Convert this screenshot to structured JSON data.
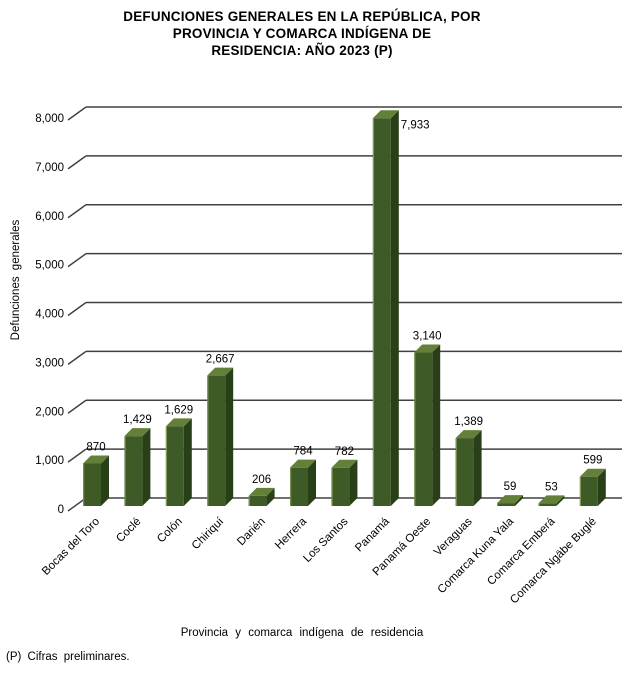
{
  "chart_data": {
    "type": "bar",
    "style": "3d-column",
    "title": "DEFUNCIONES GENERALES EN LA REPÚBLICA, POR PROVINCIA Y COMARCA INDÍGENA DE RESIDENCIA: AÑO 2023 (P)",
    "title_lines": [
      "DEFUNCIONES GENERALES EN LA REPÚBLICA, POR",
      "PROVINCIA Y COMARCA INDÍGENA DE",
      "RESIDENCIA: AÑO 2023 (P)"
    ],
    "categories": [
      "Bocas del Toro",
      "Coclé",
      "Colón",
      "Chiriquí",
      "Darién",
      "Herrera",
      "Los Santos",
      "Panamá",
      "Panamá Oeste",
      "Veraguas",
      "Comarca Kuna Yala",
      "Comarca Emberá",
      "Comarca Ngäbe Buglé"
    ],
    "values": [
      870,
      1429,
      1629,
      2667,
      206,
      784,
      782,
      7933,
      3140,
      1389,
      59,
      53,
      599
    ],
    "value_labels": [
      "870",
      "1,429",
      "1,629",
      "2,667",
      "206",
      "784",
      "782",
      "7,933",
      "3,140",
      "1,389",
      "59",
      "53",
      "599"
    ],
    "xlabel": "Provincia y comarca indígena de residencia",
    "ylabel": "Defunciones generales",
    "ylim": [
      0,
      8000
    ],
    "ytick_interval": 1000,
    "ytick_labels": [
      "0",
      "1,000",
      "2,000",
      "3,000",
      "4,000",
      "5,000",
      "6,000",
      "7,000",
      "8,000"
    ],
    "gridlines": true,
    "legend": "none",
    "footnote": "(P) Cifras preliminares.",
    "colors": {
      "bar_front": "#3e5b27",
      "bar_side": "#283f17",
      "bar_top": "#647f37",
      "bar_edge_highlight": "#93aa62",
      "gridline": "#404040",
      "text": "#000000",
      "background": "#ffffff"
    }
  }
}
